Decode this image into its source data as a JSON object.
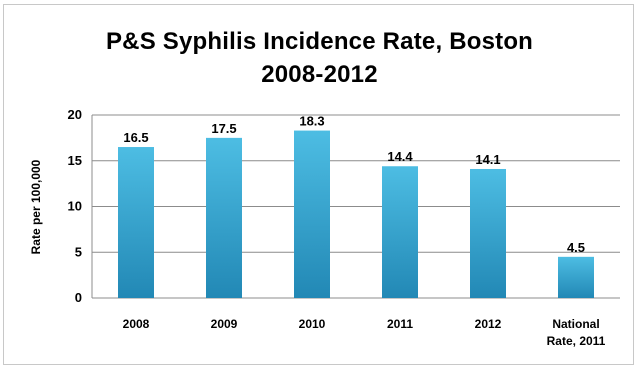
{
  "chart_data": {
    "type": "bar",
    "title_lines": [
      "P&S Syphilis Incidence Rate, Boston",
      "2008-2012"
    ],
    "ylabel": "Rate per 100,000",
    "xlabel": "",
    "categories": [
      [
        "2008"
      ],
      [
        "2009"
      ],
      [
        "2010"
      ],
      [
        "2011"
      ],
      [
        "2012"
      ],
      [
        "National",
        "Rate, 2011"
      ]
    ],
    "values": [
      16.5,
      17.5,
      18.3,
      14.4,
      14.1,
      4.5
    ],
    "value_labels": [
      "16.5",
      "17.5",
      "18.3",
      "14.4",
      "14.1",
      "4.5"
    ],
    "ylim": [
      0,
      20
    ],
    "yticks": [
      0,
      5,
      10,
      15,
      20
    ],
    "grid": true,
    "legend": "none",
    "colors": {
      "bar_top": "#4dbde3",
      "bar_bottom": "#2288b5",
      "grid": "#8c8c8c"
    }
  }
}
